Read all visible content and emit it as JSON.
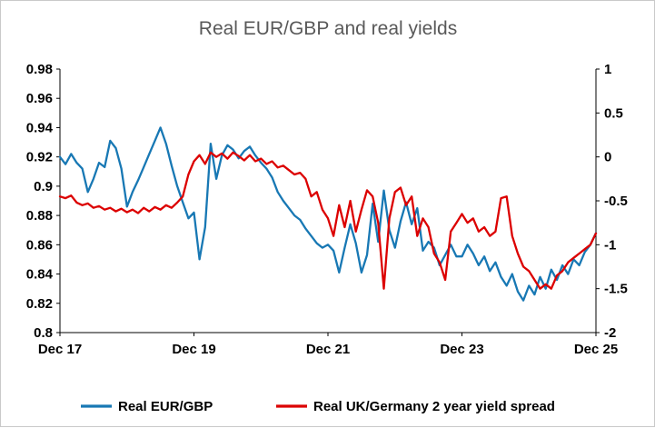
{
  "chart_data": {
    "type": "line",
    "title": "Real EUR/GBP and real yields",
    "title_color": "#595959",
    "legend_position": "bottom",
    "grid": false,
    "x_axis": {
      "tick_labels": [
        {
          "index": 0,
          "label": "Dec 17"
        },
        {
          "index": 24,
          "label": "Dec 19"
        },
        {
          "index": 48,
          "label": "Dec 21"
        },
        {
          "index": 72,
          "label": "Dec 23"
        },
        {
          "index": 96,
          "label": "Dec 25"
        }
      ]
    },
    "left_axis": {
      "min": 0.8,
      "max": 0.98,
      "ticks": [
        {
          "value": 0.98,
          "label": "0.98"
        },
        {
          "value": 0.96,
          "label": "0.96"
        },
        {
          "value": 0.94,
          "label": "0.94"
        },
        {
          "value": 0.92,
          "label": "0.92"
        },
        {
          "value": 0.9,
          "label": "0.9"
        },
        {
          "value": 0.88,
          "label": "0.88"
        },
        {
          "value": 0.86,
          "label": "0.86"
        },
        {
          "value": 0.84,
          "label": "0.84"
        },
        {
          "value": 0.82,
          "label": "0.82"
        },
        {
          "value": 0.8,
          "label": "0.8"
        }
      ]
    },
    "right_axis": {
      "min": -2,
      "max": 1,
      "ticks": [
        {
          "value": 1,
          "label": "1"
        },
        {
          "value": 0.5,
          "label": "0.5"
        },
        {
          "value": 0,
          "label": "0"
        },
        {
          "value": -0.5,
          "label": "-0.5"
        },
        {
          "value": -1,
          "label": "-1"
        },
        {
          "value": -1.5,
          "label": "-1.5"
        },
        {
          "value": -2,
          "label": "-2"
        }
      ]
    },
    "series": [
      {
        "name": "Real EUR/GBP",
        "color": "#1878b4",
        "axis": "left",
        "values": [
          0.92,
          0.915,
          0.922,
          0.916,
          0.912,
          0.896,
          0.905,
          0.916,
          0.913,
          0.931,
          0.926,
          0.912,
          0.886,
          0.896,
          0.904,
          0.913,
          0.922,
          0.931,
          0.94,
          0.929,
          0.914,
          0.9,
          0.889,
          0.878,
          0.882,
          0.85,
          0.872,
          0.929,
          0.905,
          0.921,
          0.928,
          0.925,
          0.919,
          0.924,
          0.927,
          0.921,
          0.916,
          0.912,
          0.906,
          0.896,
          0.89,
          0.885,
          0.88,
          0.877,
          0.871,
          0.866,
          0.861,
          0.858,
          0.86,
          0.856,
          0.841,
          0.858,
          0.874,
          0.861,
          0.841,
          0.853,
          0.888,
          0.862,
          0.897,
          0.87,
          0.858,
          0.876,
          0.889,
          0.874,
          0.885,
          0.856,
          0.862,
          0.858,
          0.846,
          0.853,
          0.86,
          0.852,
          0.852,
          0.86,
          0.854,
          0.846,
          0.852,
          0.842,
          0.848,
          0.838,
          0.832,
          0.84,
          0.828,
          0.822,
          0.832,
          0.826,
          0.838,
          0.83,
          0.843,
          0.836,
          0.846,
          0.84,
          0.85,
          0.846,
          0.855,
          0.86,
          0.868
        ]
      },
      {
        "name": "Real UK/Germany 2 year yield spread",
        "color": "#dc0000",
        "axis": "right",
        "values": [
          -0.45,
          -0.47,
          -0.44,
          -0.52,
          -0.55,
          -0.53,
          -0.58,
          -0.56,
          -0.6,
          -0.58,
          -0.62,
          -0.59,
          -0.63,
          -0.6,
          -0.64,
          -0.58,
          -0.62,
          -0.57,
          -0.6,
          -0.55,
          -0.58,
          -0.52,
          -0.45,
          -0.2,
          -0.05,
          0.02,
          -0.08,
          0.05,
          0.0,
          0.04,
          -0.02,
          0.05,
          0.01,
          -0.04,
          0.02,
          -0.05,
          -0.02,
          -0.08,
          -0.05,
          -0.12,
          -0.1,
          -0.15,
          -0.2,
          -0.18,
          -0.25,
          -0.45,
          -0.4,
          -0.6,
          -0.7,
          -0.9,
          -0.55,
          -0.8,
          -0.5,
          -0.85,
          -0.6,
          -0.38,
          -0.45,
          -0.75,
          -1.5,
          -0.7,
          -0.4,
          -0.35,
          -0.55,
          -0.45,
          -0.9,
          -0.7,
          -0.8,
          -1.1,
          -1.2,
          -1.4,
          -0.85,
          -0.75,
          -0.65,
          -0.75,
          -0.7,
          -0.85,
          -0.8,
          -0.9,
          -0.85,
          -0.47,
          -0.45,
          -0.9,
          -1.1,
          -1.25,
          -1.3,
          -1.4,
          -1.5,
          -1.45,
          -1.5,
          -1.35,
          -1.3,
          -1.2,
          -1.15,
          -1.1,
          -1.05,
          -1.0,
          -0.87
        ]
      }
    ]
  }
}
